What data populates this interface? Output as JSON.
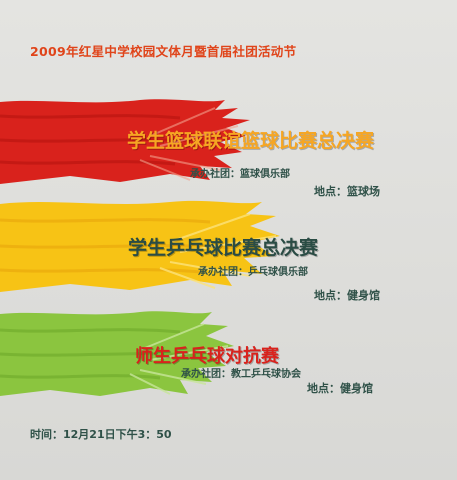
{
  "header": {
    "text": "2009年红星中学校园文体月暨首届社团活动节"
  },
  "events": [
    {
      "title": "学生篮球联谊篮球比赛总决赛",
      "organizer": "承办社团：篮球俱乐部",
      "location": "地点：篮球场",
      "color": "#d9221c",
      "title_color": "#f6a623"
    },
    {
      "title": "学生乒乓球比赛总决赛",
      "organizer": "承办社团：乒乓球俱乐部",
      "location": "地点：健身馆",
      "color": "#f7c315",
      "title_color": "#2a4c44"
    },
    {
      "title": "师生乒乓球对抗赛",
      "organizer": "承办社团：教工乒乓球协会",
      "location": "地点：健身馆",
      "color": "#8bc53f",
      "title_color": "#d9221c"
    }
  ],
  "footer": {
    "time": "时间：12月21日下午3：50"
  }
}
